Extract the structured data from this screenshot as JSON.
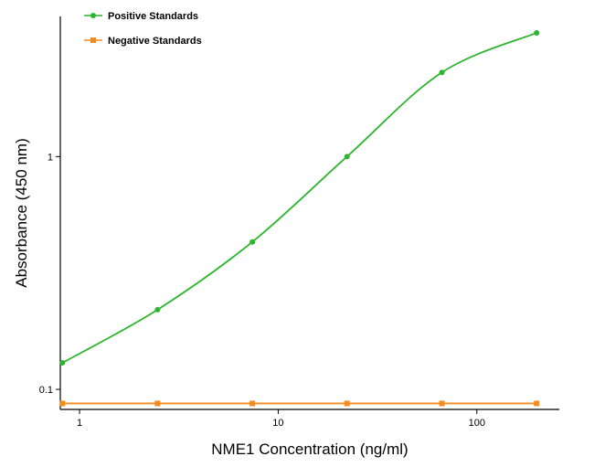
{
  "chart_data": {
    "type": "line",
    "xlabel": "NME1 Concentration (ng/ml)",
    "ylabel": "Absorbance (450 nm)",
    "xscale": "log",
    "yscale": "log",
    "xlim": [
      0.8,
      260
    ],
    "ylim": [
      0.082,
      4.0
    ],
    "x_ticks": [
      1,
      10,
      100
    ],
    "x_tick_labels": [
      "1",
      "10",
      "100"
    ],
    "y_ticks": [
      0.1,
      1
    ],
    "y_tick_labels": [
      "0.1",
      "1"
    ],
    "grid": false,
    "legend_position": "top-left",
    "series": [
      {
        "name": "Positive Standards",
        "color": "#2db52d",
        "marker": "circle",
        "fit": "sigmoid curve",
        "x": [
          0.82,
          2.47,
          7.41,
          22.2,
          66.7,
          200
        ],
        "y": [
          0.13,
          0.22,
          0.43,
          1.0,
          2.3,
          3.4
        ]
      },
      {
        "name": "Negative Standards",
        "color": "#f28c1e",
        "marker": "square",
        "fit": "line",
        "x": [
          0.82,
          2.47,
          7.41,
          22.2,
          66.7,
          200
        ],
        "y": [
          0.087,
          0.087,
          0.087,
          0.087,
          0.087,
          0.087
        ]
      }
    ]
  }
}
